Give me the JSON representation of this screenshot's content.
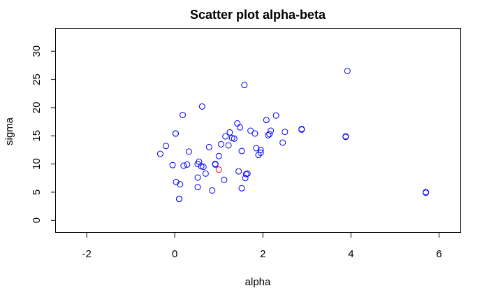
{
  "chart_data": {
    "type": "scatter",
    "title": "Scatter plot alpha-beta",
    "xlabel": "alpha",
    "ylabel": "sigma",
    "xlim": [
      -2.7,
      6.5
    ],
    "ylim": [
      -2.2,
      34.0
    ],
    "xticks": [
      -2,
      0,
      2,
      4,
      6
    ],
    "yticks": [
      0,
      5,
      10,
      15,
      20,
      25,
      30
    ],
    "grid": false,
    "legend": "none",
    "colors": {
      "points": "#0000ff",
      "highlight": "#ff0000",
      "frame": "#000000"
    },
    "series": [
      {
        "color": "#0000ff",
        "points": [
          [
            -0.33,
            11.8
          ],
          [
            -0.2,
            13.2
          ],
          [
            -0.05,
            9.8
          ],
          [
            0.02,
            15.4
          ],
          [
            0.02,
            15.4
          ],
          [
            0.03,
            6.8
          ],
          [
            0.1,
            3.8
          ],
          [
            0.1,
            3.8
          ],
          [
            0.12,
            6.4
          ],
          [
            0.18,
            18.7
          ],
          [
            0.2,
            9.7
          ],
          [
            0.28,
            9.9
          ],
          [
            0.32,
            12.2
          ],
          [
            0.52,
            7.6
          ],
          [
            0.52,
            10.0
          ],
          [
            0.52,
            5.9
          ],
          [
            0.55,
            10.4
          ],
          [
            0.6,
            9.6
          ],
          [
            0.65,
            9.5
          ],
          [
            0.62,
            20.2
          ],
          [
            0.7,
            8.3
          ],
          [
            0.78,
            13.0
          ],
          [
            0.85,
            5.3
          ],
          [
            0.92,
            10.0
          ],
          [
            0.92,
            9.9
          ],
          [
            1.0,
            11.4
          ],
          [
            1.05,
            13.5
          ],
          [
            1.12,
            7.2
          ],
          [
            1.15,
            14.9
          ],
          [
            1.22,
            13.3
          ],
          [
            1.25,
            15.6
          ],
          [
            1.3,
            14.6
          ],
          [
            1.35,
            14.5
          ],
          [
            1.42,
            17.2
          ],
          [
            1.45,
            8.7
          ],
          [
            1.48,
            16.5
          ],
          [
            1.52,
            5.7
          ],
          [
            1.52,
            12.3
          ],
          [
            1.58,
            24.0
          ],
          [
            1.6,
            7.5
          ],
          [
            1.62,
            8.2
          ],
          [
            1.65,
            8.3
          ],
          [
            1.72,
            15.9
          ],
          [
            1.82,
            15.4
          ],
          [
            1.85,
            12.8
          ],
          [
            1.9,
            11.6
          ],
          [
            1.95,
            12.0
          ],
          [
            1.95,
            12.5
          ],
          [
            2.08,
            17.8
          ],
          [
            2.12,
            15.1
          ],
          [
            2.15,
            15.3
          ],
          [
            2.18,
            15.9
          ],
          [
            2.3,
            18.6
          ],
          [
            2.45,
            13.8
          ],
          [
            2.5,
            15.7
          ],
          [
            2.88,
            16.1
          ],
          [
            2.88,
            16.2
          ],
          [
            3.88,
            14.9
          ],
          [
            3.88,
            14.8
          ],
          [
            3.92,
            26.5
          ],
          [
            5.7,
            5.0
          ],
          [
            5.7,
            4.9
          ]
        ]
      },
      {
        "color": "#ff0000",
        "points": [
          [
            1.0,
            9.0
          ]
        ]
      }
    ]
  }
}
